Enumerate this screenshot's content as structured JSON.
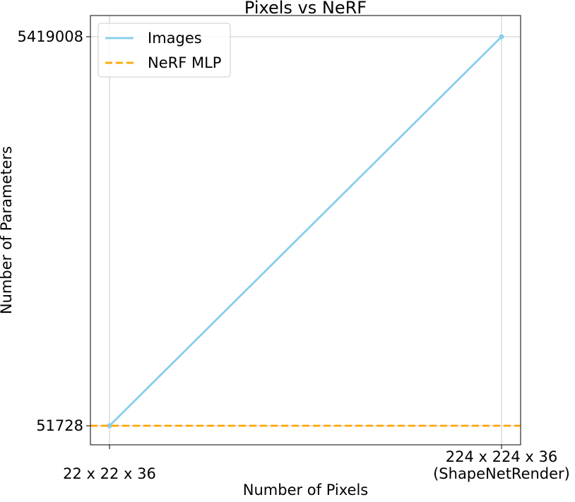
{
  "chart_data": {
    "type": "line",
    "title": "Pixels vs NeRF",
    "xlabel": "Number of Pixels",
    "ylabel": "Number of Parameters",
    "categories": [
      "22 x 22 x 36",
      "224 x 224 x 36\n(ShapeNetRender)"
    ],
    "yticks": [
      51728,
      5419008
    ],
    "ytick_labels": [
      "51728",
      "5419008"
    ],
    "grid": true,
    "legend_position": "top-left",
    "series": [
      {
        "name": "Images",
        "values": [
          51728,
          5419008
        ],
        "color": "#87CEEB",
        "style": "solid",
        "markers": true
      },
      {
        "name": "NeRF MLP",
        "values": [
          51728,
          51728
        ],
        "color": "#FFA500",
        "style": "dashed",
        "markers": false
      }
    ]
  }
}
